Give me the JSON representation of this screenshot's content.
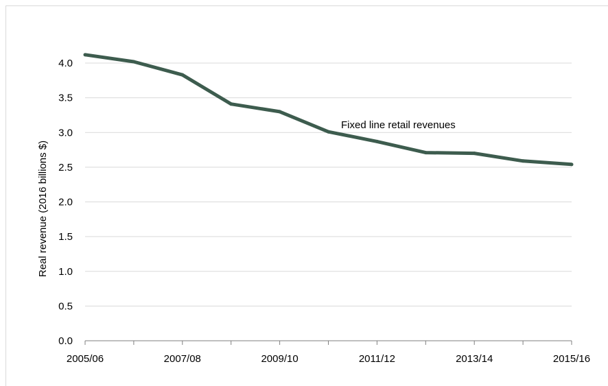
{
  "chart_data": {
    "type": "line",
    "ylabel": "Real revenue (2016 billions $)",
    "ylim": [
      0,
      4.0
    ],
    "y_ticks": [
      "0.0",
      "0.5",
      "1.0",
      "1.5",
      "2.0",
      "2.5",
      "3.0",
      "3.5",
      "4.0"
    ],
    "x_tick_labels": [
      "2005/06",
      "2007/08",
      "2009/10",
      "2011/12",
      "2013/14",
      "2015/16"
    ],
    "grid": "horizontal",
    "annotation": "Fixed line retail revenues",
    "series": [
      {
        "name": "Fixed line retail revenues",
        "color": "#3d5c4e",
        "x": [
          "2005/06",
          "2006/07",
          "2007/08",
          "2008/09",
          "2009/10",
          "2010/11",
          "2011/12",
          "2012/13",
          "2013/14",
          "2014/15",
          "2015/16"
        ],
        "values": [
          4.12,
          4.02,
          3.83,
          3.41,
          3.3,
          3.01,
          2.87,
          2.71,
          2.7,
          2.59,
          2.54
        ]
      }
    ]
  }
}
